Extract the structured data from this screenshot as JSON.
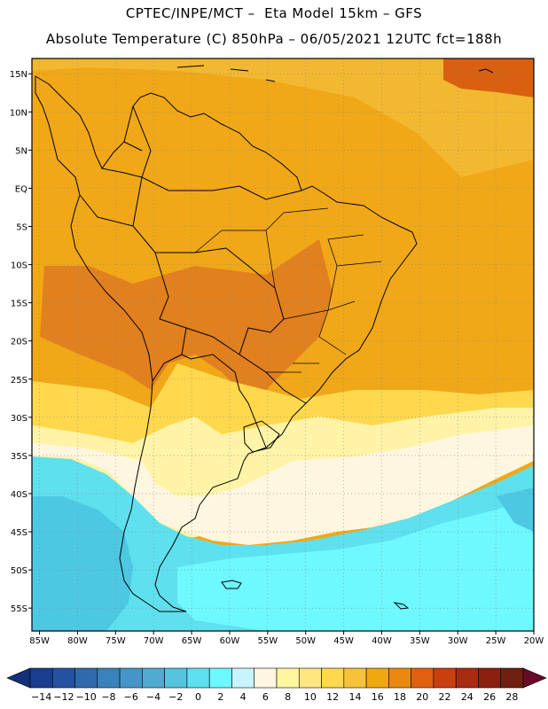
{
  "header": {
    "line1": "CPTEC/INPE/MCT –  Eta Model 15km – GFS",
    "line2": "Absolute Temperature (C) 850hPa – 06/05/2021 12UTC fct=188h"
  },
  "axes": {
    "lat_labels": [
      "15N",
      "10N",
      "5N",
      "EQ",
      "5S",
      "10S",
      "15S",
      "20S",
      "25S",
      "30S",
      "35S",
      "40S",
      "45S",
      "50S",
      "55S"
    ],
    "lon_labels": [
      "85W",
      "80W",
      "75W",
      "70W",
      "65W",
      "60W",
      "55W",
      "50W",
      "45W",
      "40W",
      "35W",
      "30W",
      "25W",
      "20W"
    ]
  },
  "colorbar": {
    "labels": [
      "-14",
      "-12",
      "-10",
      "-8",
      "-6",
      "-4",
      "-2",
      "0",
      "2",
      "4",
      "6",
      "8",
      "10",
      "12",
      "14",
      "16",
      "18",
      "20",
      "22",
      "24",
      "26",
      "28"
    ],
    "colors": [
      "#1a3d8f",
      "#25529e",
      "#2f6aad",
      "#3a82bb",
      "#4596c6",
      "#4faccf",
      "#55c4dd",
      "#5ee0ee",
      "#6ef8ff",
      "#c8f4ff",
      "#fff6df",
      "#fff6a0",
      "#ffe680",
      "#ffd84d",
      "#f5c23a",
      "#f0a810",
      "#e88a10",
      "#e06010",
      "#c84010",
      "#a82c10",
      "#8c2010",
      "#702010"
    ],
    "under_color": "#14307a",
    "over_color": "#6a0a2a"
  },
  "map_colors": {
    "warm_deep": "#e0801e",
    "warm": "#f0a818",
    "warm_light": "#f2b830",
    "yellow": "#ffd84d",
    "pale_yellow": "#fff3a8",
    "cream": "#fff6df",
    "cyan_light": "#6ef8ff",
    "cyan": "#5ee0ee",
    "cyan_dark": "#4cc8e2",
    "hot": "#d86010"
  }
}
